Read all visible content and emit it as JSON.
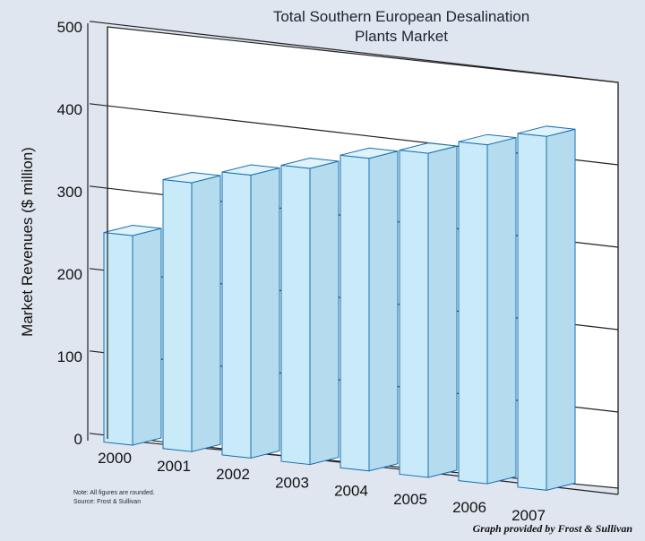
{
  "chart_data": {
    "type": "bar",
    "title_line1": "Total Southern European Desalination",
    "title_line2": "Plants Market",
    "ylabel": "Market Revenues ($ million)",
    "xlabel": "",
    "categories": [
      "2000",
      "2001",
      "2002",
      "2003",
      "2004",
      "2005",
      "2006",
      "2007"
    ],
    "values": [
      250,
      322,
      339,
      355,
      375,
      389,
      407,
      425
    ],
    "ylim": [
      0,
      500
    ],
    "yticks": [
      "0",
      "100",
      "200",
      "300",
      "400",
      "500"
    ],
    "grid": true,
    "style": "3d",
    "bar_color": "#c9eaf8",
    "bar_edge_color": "#1a6fb0",
    "note_line1": "Note: All figures are rounded.",
    "note_line2": "Source: Frost & Sullivan",
    "credit": "Graph provided by Frost & Sullivan"
  }
}
